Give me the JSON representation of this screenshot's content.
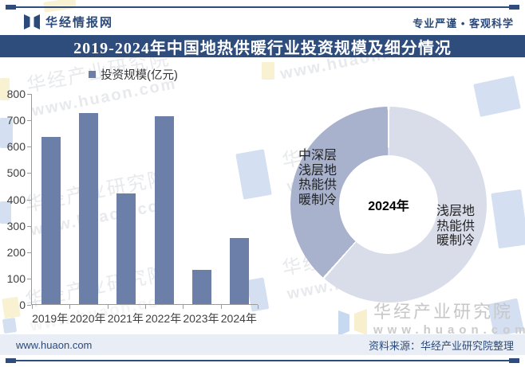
{
  "header": {
    "brand": "华经情报网",
    "slogan": "专业严谨 • 客观科学",
    "title": "2019-2024年中国地热供暖行业投资规模及细分情况"
  },
  "legend": {
    "label": "投资规模(亿元)"
  },
  "chart_data": [
    {
      "type": "bar",
      "title": "投资规模(亿元)",
      "categories": [
        "2019年",
        "2020年",
        "2021年",
        "2022年",
        "2023年",
        "2024年"
      ],
      "values": [
        635,
        725,
        420,
        713,
        130,
        250
      ],
      "ylabel": "",
      "ylim": [
        0,
        800
      ],
      "ytick_step": 100,
      "bar_color": "#6b7fa8"
    },
    {
      "type": "pie",
      "center_label": "2024年",
      "slices": [
        {
          "label": "浅层地热能供暖制冷",
          "value": 61.5,
          "color": "#d9dde9"
        },
        {
          "label": "中深层浅层地热能供暖制冷",
          "value": 38.5,
          "color": "#a8b2cc"
        }
      ]
    }
  ],
  "donut": {
    "center_label": "2024年",
    "left_label": "中深层\n浅层地\n热能供\n暖制冷",
    "right_label": "浅层地\n热能供\n暖制冷"
  },
  "footer": {
    "site": "www.huaon.com",
    "source": "资料来源：华经产业研究院整理"
  },
  "watermark": {
    "line1": "华经产业研究院",
    "line2": "www.huaon.com"
  }
}
